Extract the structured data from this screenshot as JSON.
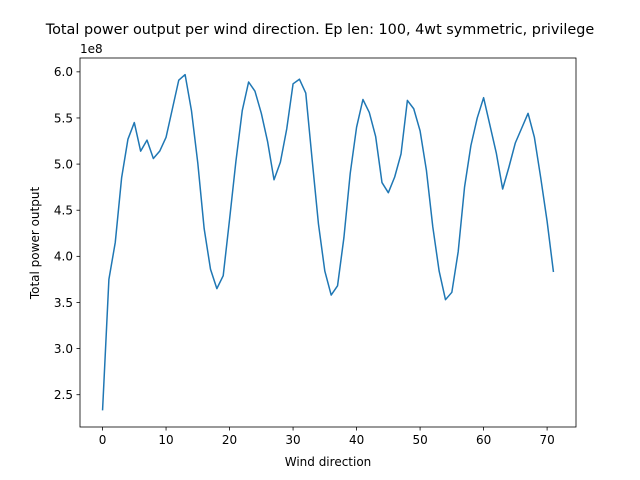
{
  "chart_data": {
    "type": "line",
    "title": "Total power output per wind direction. Ep len: 100, 4wt symmetric, privilege",
    "xlabel": "Wind direction",
    "ylabel": "Total power output",
    "y_multiplier_label": "1e8",
    "xlim": [
      -3.55,
      74.55
    ],
    "ylim": [
      2.15,
      6.15
    ],
    "x_ticks": [
      0,
      10,
      20,
      30,
      40,
      50,
      60,
      70
    ],
    "x_tick_labels": [
      "0",
      "10",
      "20",
      "30",
      "40",
      "50",
      "60",
      "70"
    ],
    "y_ticks": [
      2.5,
      3.0,
      3.5,
      4.0,
      4.5,
      5.0,
      5.5,
      6.0
    ],
    "y_tick_labels": [
      "2.5",
      "3.0",
      "3.5",
      "4.0",
      "4.5",
      "5.0",
      "5.5",
      "6.0"
    ],
    "grid": false,
    "series": [
      {
        "color": "#1f77b4",
        "x": [
          0,
          1,
          2,
          3,
          4,
          5,
          6,
          7,
          8,
          9,
          10,
          11,
          12,
          13,
          14,
          15,
          16,
          17,
          18,
          19,
          20,
          21,
          22,
          23,
          24,
          25,
          26,
          27,
          28,
          29,
          30,
          31,
          32,
          33,
          34,
          35,
          36,
          37,
          38,
          39,
          40,
          41,
          42,
          43,
          44,
          45,
          46,
          47,
          48,
          49,
          50,
          51,
          52,
          53,
          54,
          55,
          56,
          57,
          58,
          59,
          60,
          61,
          62,
          63,
          64,
          65,
          66,
          67,
          68,
          69,
          70,
          71
        ],
        "values": [
          2.33,
          3.75,
          4.15,
          4.85,
          5.27,
          5.45,
          5.14,
          5.26,
          5.06,
          5.14,
          5.29,
          5.6,
          5.91,
          5.97,
          5.58,
          5.01,
          4.3,
          3.86,
          3.65,
          3.79,
          4.4,
          5.03,
          5.58,
          5.89,
          5.79,
          5.55,
          5.24,
          4.83,
          5.02,
          5.38,
          5.87,
          5.92,
          5.77,
          5.05,
          4.35,
          3.84,
          3.58,
          3.68,
          4.2,
          4.9,
          5.4,
          5.7,
          5.56,
          5.3,
          4.8,
          4.69,
          4.86,
          5.11,
          5.69,
          5.6,
          5.36,
          4.93,
          4.32,
          3.84,
          3.53,
          3.61,
          4.05,
          4.75,
          5.2,
          5.5,
          5.72,
          5.42,
          5.12,
          4.73,
          4.97,
          5.23,
          5.39,
          5.55,
          5.29,
          4.85,
          4.38,
          3.83
        ]
      }
    ]
  }
}
